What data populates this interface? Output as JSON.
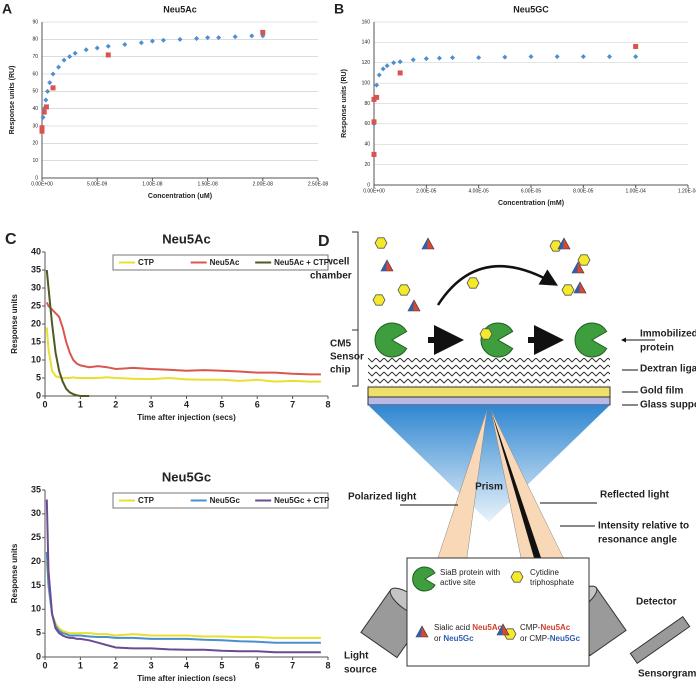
{
  "chart_data": [
    {
      "type": "scatter",
      "panel_label": "A",
      "title": "Neu5Ac",
      "x_label": "Concentration (uM)",
      "y_label": "Response units (RU)",
      "xlim": [
        0,
        2.5e-08
      ],
      "xticks": [
        {
          "value": 0,
          "label": "0.00E+00"
        },
        {
          "value": 5e-09,
          "label": "5.00E-09"
        },
        {
          "value": 1e-08,
          "label": "1.00E-08"
        },
        {
          "value": 1.5e-08,
          "label": "1.50E-08"
        },
        {
          "value": 2e-08,
          "label": "2.00E-08"
        },
        {
          "value": 2.5e-08,
          "label": "2.50E-08"
        }
      ],
      "ylim": [
        0,
        90
      ],
      "yticks": [
        0,
        10,
        20,
        30,
        40,
        50,
        60,
        70,
        80,
        90
      ],
      "grid": true,
      "series": [
        {
          "color": "#4f8fcf",
          "marker": "diamond",
          "x": [
            0,
            1e-10,
            2e-10,
            3.5e-10,
            5e-10,
            7e-10,
            1e-09,
            1.5e-09,
            2e-09,
            2.5e-09,
            3e-09,
            4e-09,
            5e-09,
            6e-09,
            7.5e-09,
            9e-09,
            1e-08,
            1.1e-08,
            1.25e-08,
            1.4e-08,
            1.5e-08,
            1.6e-08,
            1.75e-08,
            1.9e-08,
            2e-08
          ],
          "values": [
            28,
            35,
            40,
            45,
            50,
            55,
            60,
            64,
            68,
            70,
            72,
            74,
            75,
            76,
            77,
            78,
            79,
            79.5,
            80,
            80.5,
            81,
            81,
            81.5,
            82,
            82
          ]
        },
        {
          "color": "#d9534f",
          "marker": "square",
          "x": [
            0,
            0,
            2e-10,
            4e-10,
            1e-09,
            6e-09,
            2e-08
          ],
          "values": [
            27,
            29,
            38,
            41,
            52,
            71,
            84
          ]
        }
      ]
    },
    {
      "type": "scatter",
      "panel_label": "B",
      "title": "Neu5GC",
      "x_label": "Concentration (mM)",
      "y_label": "Response units (RU)",
      "xlim": [
        0,
        0.00012
      ],
      "xticks": [
        {
          "value": 0,
          "label": "0.00E+00"
        },
        {
          "value": 2e-05,
          "label": "2.00E-05"
        },
        {
          "value": 4e-05,
          "label": "4.00E-05"
        },
        {
          "value": 6e-05,
          "label": "6.00E-05"
        },
        {
          "value": 8e-05,
          "label": "8.00E-05"
        },
        {
          "value": 0.0001,
          "label": "1.00E-04"
        },
        {
          "value": 0.00012,
          "label": "1.20E-04"
        }
      ],
      "ylim": [
        0,
        160
      ],
      "yticks": [
        0,
        20,
        40,
        60,
        80,
        100,
        120,
        140,
        160
      ],
      "grid": true,
      "series": [
        {
          "color": "#4f8fcf",
          "marker": "diamond",
          "x": [
            0,
            5e-07,
            1e-06,
            2e-06,
            3.5e-06,
            5e-06,
            7.5e-06,
            1e-05,
            1.5e-05,
            2e-05,
            2.5e-05,
            3e-05,
            4e-05,
            5e-05,
            6e-05,
            7e-05,
            8e-05,
            9e-05,
            0.0001
          ],
          "values": [
            60,
            85,
            98,
            108,
            114,
            117,
            120,
            121,
            123,
            124,
            124.5,
            125,
            125,
            125.5,
            126,
            126,
            126,
            126,
            126
          ]
        },
        {
          "color": "#d9534f",
          "marker": "square",
          "x": [
            0,
            0,
            0,
            1e-06,
            1e-05,
            0.0001
          ],
          "values": [
            30,
            62,
            84,
            86,
            110,
            136
          ]
        }
      ]
    },
    {
      "type": "line",
      "panel_label": "C",
      "title": "Neu5Ac",
      "x_label": "Time after injection (secs)",
      "y_label": "Response units",
      "xlim": [
        0,
        8
      ],
      "xticks": [
        0,
        1,
        2,
        3,
        4,
        5,
        6,
        7,
        8
      ],
      "ylim": [
        0,
        40
      ],
      "yticks": [
        0,
        5,
        10,
        15,
        20,
        25,
        30,
        35,
        40
      ],
      "legend": "top-right",
      "x": [
        0.05,
        0.1,
        0.2,
        0.3,
        0.4,
        0.5,
        0.6,
        0.7,
        0.8,
        0.9,
        1,
        1.25,
        1.5,
        1.75,
        2,
        2.5,
        3,
        3.5,
        4,
        4.5,
        5,
        5.5,
        6,
        6.5,
        7,
        7.5,
        7.8
      ],
      "series": [
        {
          "name": "CTP",
          "color": "#e8e030",
          "values": [
            19,
            13,
            7,
            5.5,
            5.2,
            5,
            5,
            5,
            5.2,
            5,
            5,
            5,
            5,
            5.2,
            5,
            4.8,
            4.7,
            5,
            4.6,
            4.5,
            4.5,
            4.2,
            4.5,
            4,
            4.2,
            4,
            4
          ]
        },
        {
          "name": "Neu5Ac",
          "color": "#d9574f",
          "values": [
            26,
            25,
            24,
            23,
            22,
            19,
            15,
            12,
            10,
            9,
            8.5,
            8,
            8.3,
            8,
            7.5,
            7.8,
            7.5,
            7.3,
            7,
            7.2,
            7,
            6.8,
            6.5,
            6.5,
            6.2,
            6,
            6
          ]
        },
        {
          "name": "Neu5Ac + CTP",
          "color": "#4e5a22",
          "values": [
            35,
            30,
            20,
            12,
            7,
            4,
            2,
            1,
            0.5,
            0.2,
            0,
            0,
            null,
            null,
            null,
            null,
            null,
            null,
            null,
            null,
            null,
            null,
            null,
            null,
            null,
            null,
            null
          ]
        }
      ]
    },
    {
      "type": "line",
      "title": "Neu5Gc",
      "x_label": "Time after injection (secs)",
      "y_label": "Response units",
      "xlim": [
        0,
        8
      ],
      "xticks": [
        0,
        1,
        2,
        3,
        4,
        5,
        6,
        7,
        8
      ],
      "ylim": [
        0,
        35
      ],
      "yticks": [
        0,
        5,
        10,
        15,
        20,
        25,
        30,
        35
      ],
      "legend": "top-right",
      "x": [
        0.05,
        0.1,
        0.2,
        0.3,
        0.4,
        0.5,
        0.6,
        0.7,
        0.8,
        0.9,
        1,
        1.25,
        1.5,
        1.75,
        2,
        2.5,
        3,
        3.5,
        4,
        4.5,
        5,
        5.5,
        6,
        6.5,
        7,
        7.5,
        7.8
      ],
      "series": [
        {
          "name": "CTP",
          "color": "#e8e030",
          "values": [
            20,
            15,
            9,
            7,
            6,
            5.5,
            5.2,
            5,
            5,
            5,
            5,
            5,
            4.8,
            4.8,
            4.5,
            4.8,
            4.5,
            4.5,
            4.5,
            4.3,
            4.3,
            4.2,
            4.2,
            4,
            4,
            4,
            4
          ]
        },
        {
          "name": "Neu5Gc",
          "color": "#4a90cc",
          "values": [
            22,
            15,
            9,
            6.5,
            5.5,
            5,
            4.8,
            4.5,
            4.5,
            4.5,
            4.5,
            4.3,
            4.2,
            4.2,
            4,
            4,
            3.8,
            3.8,
            3.8,
            3.6,
            3.5,
            3.3,
            3.2,
            3,
            3,
            3,
            3
          ]
        },
        {
          "name": "Neu5Gc + CTP",
          "color": "#6a4c93",
          "values": [
            33,
            18,
            9,
            6,
            5,
            4.5,
            4.2,
            4,
            4,
            3.8,
            3.8,
            3.5,
            3,
            2.5,
            2,
            1.8,
            1.8,
            1.6,
            1.5,
            1.5,
            1.3,
            1.2,
            1.2,
            1,
            1,
            1,
            1
          ]
        }
      ]
    }
  ],
  "diagram": {
    "panel_label": "D",
    "flowcell": [
      "Flowcell",
      "chamber"
    ],
    "sensor_chip": [
      "CM5",
      "Sensor",
      "chip"
    ],
    "immobilized": [
      "Immobilized",
      "protein"
    ],
    "dextran": "Dextran ligand",
    "gold": "Gold film",
    "glass": "Glass support",
    "prism": "Prism",
    "polarized": "Polarized light",
    "reflected": "Reflected light",
    "intensity": [
      "Intensity relative to",
      "resonance angle"
    ],
    "detector": "Detector",
    "light_source": [
      "Light",
      "source"
    ],
    "sensorgram": "Sensorgram",
    "legend": {
      "siab": [
        "SiaB protein with",
        "active site"
      ],
      "ctp": [
        "Cytidine",
        "triphosphate"
      ],
      "sialic": [
        [
          "Sialic acid ",
          "Neu5Ac"
        ],
        [
          "or ",
          "Neu5Gc"
        ]
      ],
      "cmp": [
        [
          "CMP-",
          "Neu5Ac"
        ],
        [
          "or CMP-",
          "Neu5Gc"
        ]
      ]
    }
  }
}
